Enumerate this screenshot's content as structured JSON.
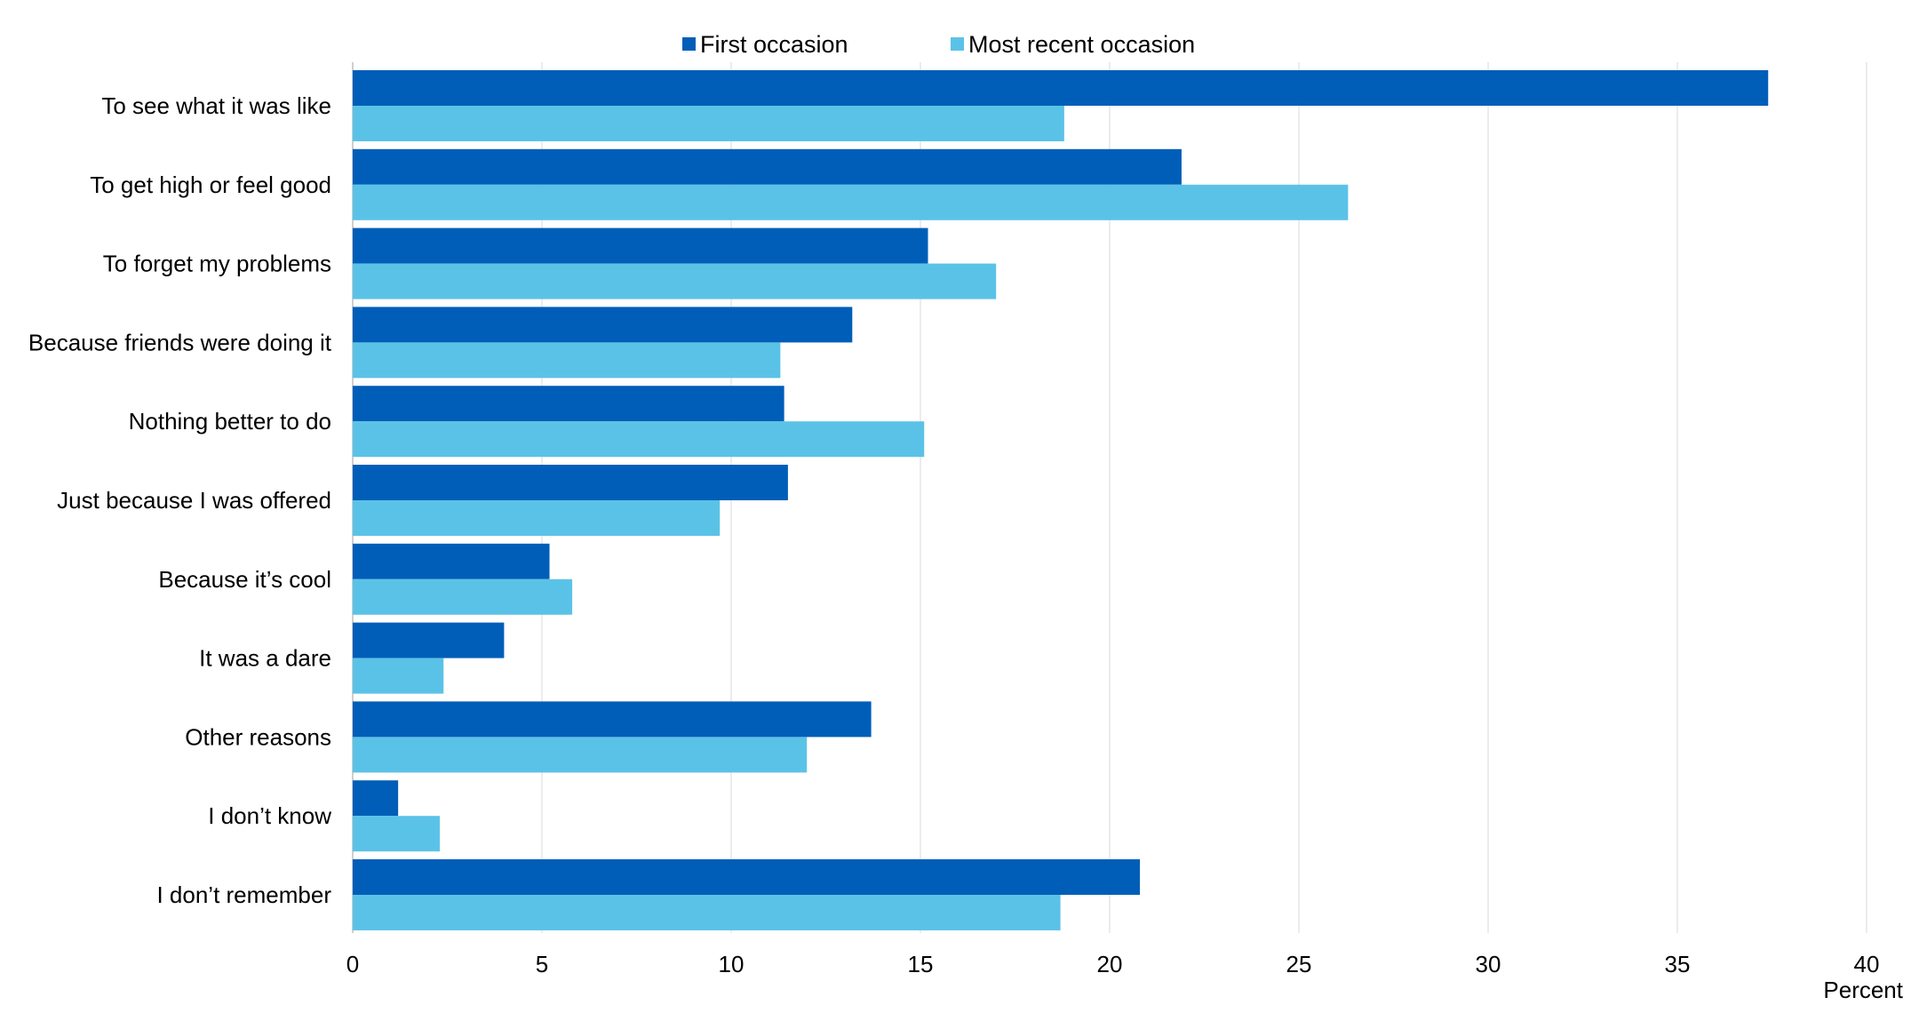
{
  "chart_data": {
    "type": "bar",
    "orientation": "horizontal",
    "categories": [
      "To see what it was like",
      "To get high or feel good",
      "To forget my problems",
      "Because friends were doing it",
      "Nothing better to do",
      "Just because I was offered",
      "Because it’s cool",
      "It was a dare",
      "Other reasons",
      "I don’t know",
      "I don’t remember"
    ],
    "series": [
      {
        "name": "First occasion",
        "color": "#005EB8",
        "values": [
          37.4,
          21.9,
          15.2,
          13.2,
          11.4,
          11.5,
          5.2,
          4.0,
          13.7,
          1.2,
          20.8
        ]
      },
      {
        "name": "Most recent occasion",
        "color": "#5BC2E7",
        "values": [
          18.8,
          26.3,
          17.0,
          11.3,
          15.1,
          9.7,
          5.8,
          2.4,
          12.0,
          2.3,
          18.7
        ]
      }
    ],
    "xlim": [
      0,
      40
    ],
    "xticks": [
      "0",
      "5",
      "10",
      "15",
      "20",
      "25",
      "30",
      "35",
      "40"
    ],
    "xlabel": "Percent",
    "grid": true,
    "legend": "top-center"
  }
}
